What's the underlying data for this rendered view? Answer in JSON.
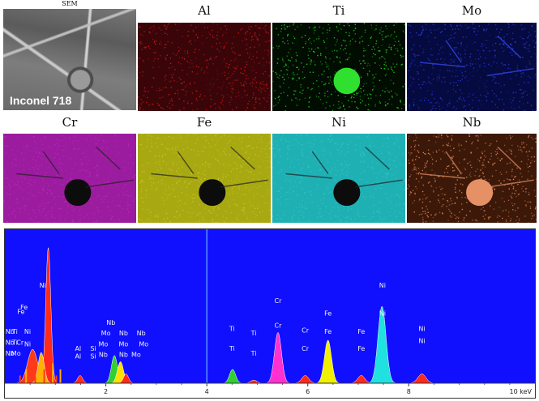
{
  "panels": {
    "sem": {
      "label": "SEM",
      "caption": "Inconel 718"
    },
    "maps": [
      {
        "label": "Al",
        "color": "#d01818",
        "bg": "#3a0508"
      },
      {
        "label": "Ti",
        "color": "#22d322",
        "bg": "#020d02"
      },
      {
        "label": "Mo",
        "color": "#2a3ad8",
        "bg": "#050a40"
      },
      {
        "label": "Cr",
        "color": "#c026c6",
        "bg": "#9b1c9e"
      },
      {
        "label": "Fe",
        "color": "#c8c820",
        "bg": "#a8a812"
      },
      {
        "label": "Ni",
        "color": "#30c8c8",
        "bg": "#1fb0b4"
      },
      {
        "label": "Nb",
        "color": "#e08a5a",
        "bg": "#3c1808"
      }
    ]
  },
  "spectrum": {
    "background": "#1010ff",
    "x_axis": {
      "min": 0,
      "max": 10.5,
      "ticks": [
        "2",
        "4",
        "6",
        "8"
      ],
      "end_label": "10 keV"
    },
    "cursor_kev": 4.0,
    "peak_labels": [
      {
        "text": "Nb",
        "x": 0.1,
        "y": 0.68
      },
      {
        "text": "Nb",
        "x": 0.1,
        "y": 0.75
      },
      {
        "text": "Nb",
        "x": 0.1,
        "y": 0.82
      },
      {
        "text": "Ti",
        "x": 0.2,
        "y": 0.68
      },
      {
        "text": "Ti",
        "x": 0.2,
        "y": 0.75
      },
      {
        "text": "Mo",
        "x": 0.22,
        "y": 0.82
      },
      {
        "text": "Cr",
        "x": 0.3,
        "y": 0.75
      },
      {
        "text": "Fe",
        "x": 0.32,
        "y": 0.55
      },
      {
        "text": "Fe",
        "x": 0.38,
        "y": 0.52
      },
      {
        "text": "Ni",
        "x": 0.45,
        "y": 0.68
      },
      {
        "text": "Ni",
        "x": 0.45,
        "y": 0.76
      },
      {
        "text": "Ni",
        "x": 0.75,
        "y": 0.38
      },
      {
        "text": "Al",
        "x": 1.45,
        "y": 0.79
      },
      {
        "text": "Al",
        "x": 1.45,
        "y": 0.84
      },
      {
        "text": "Si",
        "x": 1.75,
        "y": 0.79
      },
      {
        "text": "Si",
        "x": 1.75,
        "y": 0.84
      },
      {
        "text": "Nb",
        "x": 2.1,
        "y": 0.62
      },
      {
        "text": "Mo",
        "x": 2.0,
        "y": 0.69
      },
      {
        "text": "Nb",
        "x": 2.35,
        "y": 0.69
      },
      {
        "text": "Nb",
        "x": 2.7,
        "y": 0.69
      },
      {
        "text": "Mo",
        "x": 1.95,
        "y": 0.76
      },
      {
        "text": "Mo",
        "x": 2.35,
        "y": 0.76
      },
      {
        "text": "Mo",
        "x": 2.75,
        "y": 0.76
      },
      {
        "text": "Nb",
        "x": 1.95,
        "y": 0.83
      },
      {
        "text": "Nb",
        "x": 2.35,
        "y": 0.83
      },
      {
        "text": "Mo",
        "x": 2.6,
        "y": 0.83
      },
      {
        "text": "Ti",
        "x": 4.5,
        "y": 0.66
      },
      {
        "text": "Ti",
        "x": 4.5,
        "y": 0.79
      },
      {
        "text": "Ti",
        "x": 4.93,
        "y": 0.69
      },
      {
        "text": "Ti",
        "x": 4.93,
        "y": 0.82
      },
      {
        "text": "Cr",
        "x": 5.41,
        "y": 0.48
      },
      {
        "text": "Cr",
        "x": 5.41,
        "y": 0.64
      },
      {
        "text": "Cr",
        "x": 5.95,
        "y": 0.67
      },
      {
        "text": "Cr",
        "x": 5.95,
        "y": 0.79
      },
      {
        "text": "Fe",
        "x": 6.4,
        "y": 0.56
      },
      {
        "text": "Fe",
        "x": 6.4,
        "y": 0.68
      },
      {
        "text": "Fe",
        "x": 7.06,
        "y": 0.68
      },
      {
        "text": "Fe",
        "x": 7.06,
        "y": 0.79
      },
      {
        "text": "Ni",
        "x": 7.48,
        "y": 0.38
      },
      {
        "text": "Ni",
        "x": 7.48,
        "y": 0.56
      },
      {
        "text": "Ni",
        "x": 8.26,
        "y": 0.66
      },
      {
        "text": "Ni",
        "x": 8.26,
        "y": 0.74
      }
    ],
    "peaks": [
      {
        "kev": 0.86,
        "height": 0.88,
        "width": 0.05,
        "color": "#ff2a1a"
      },
      {
        "kev": 0.55,
        "height": 0.22,
        "width": 0.1,
        "color": "#ff3a1a"
      },
      {
        "kev": 0.72,
        "height": 0.2,
        "width": 0.06,
        "color": "#ffb000"
      },
      {
        "kev": 1.49,
        "height": 0.05,
        "width": 0.05,
        "color": "#ff2a1a"
      },
      {
        "kev": 2.17,
        "height": 0.18,
        "width": 0.06,
        "color": "#30d030"
      },
      {
        "kev": 2.29,
        "height": 0.14,
        "width": 0.06,
        "color": "#ffe000"
      },
      {
        "kev": 2.4,
        "height": 0.06,
        "width": 0.05,
        "color": "#ff2a1a"
      },
      {
        "kev": 4.51,
        "height": 0.09,
        "width": 0.06,
        "color": "#30d030"
      },
      {
        "kev": 4.93,
        "height": 0.02,
        "width": 0.06,
        "color": "#ff2a1a"
      },
      {
        "kev": 5.41,
        "height": 0.33,
        "width": 0.07,
        "color": "#ff30d0"
      },
      {
        "kev": 5.95,
        "height": 0.05,
        "width": 0.07,
        "color": "#ff2a1a"
      },
      {
        "kev": 6.4,
        "height": 0.28,
        "width": 0.07,
        "color": "#f0f000"
      },
      {
        "kev": 7.06,
        "height": 0.05,
        "width": 0.07,
        "color": "#ff2a1a"
      },
      {
        "kev": 7.47,
        "height": 0.5,
        "width": 0.08,
        "color": "#20e0e0"
      },
      {
        "kev": 8.26,
        "height": 0.06,
        "width": 0.08,
        "color": "#ff2a1a"
      }
    ]
  }
}
